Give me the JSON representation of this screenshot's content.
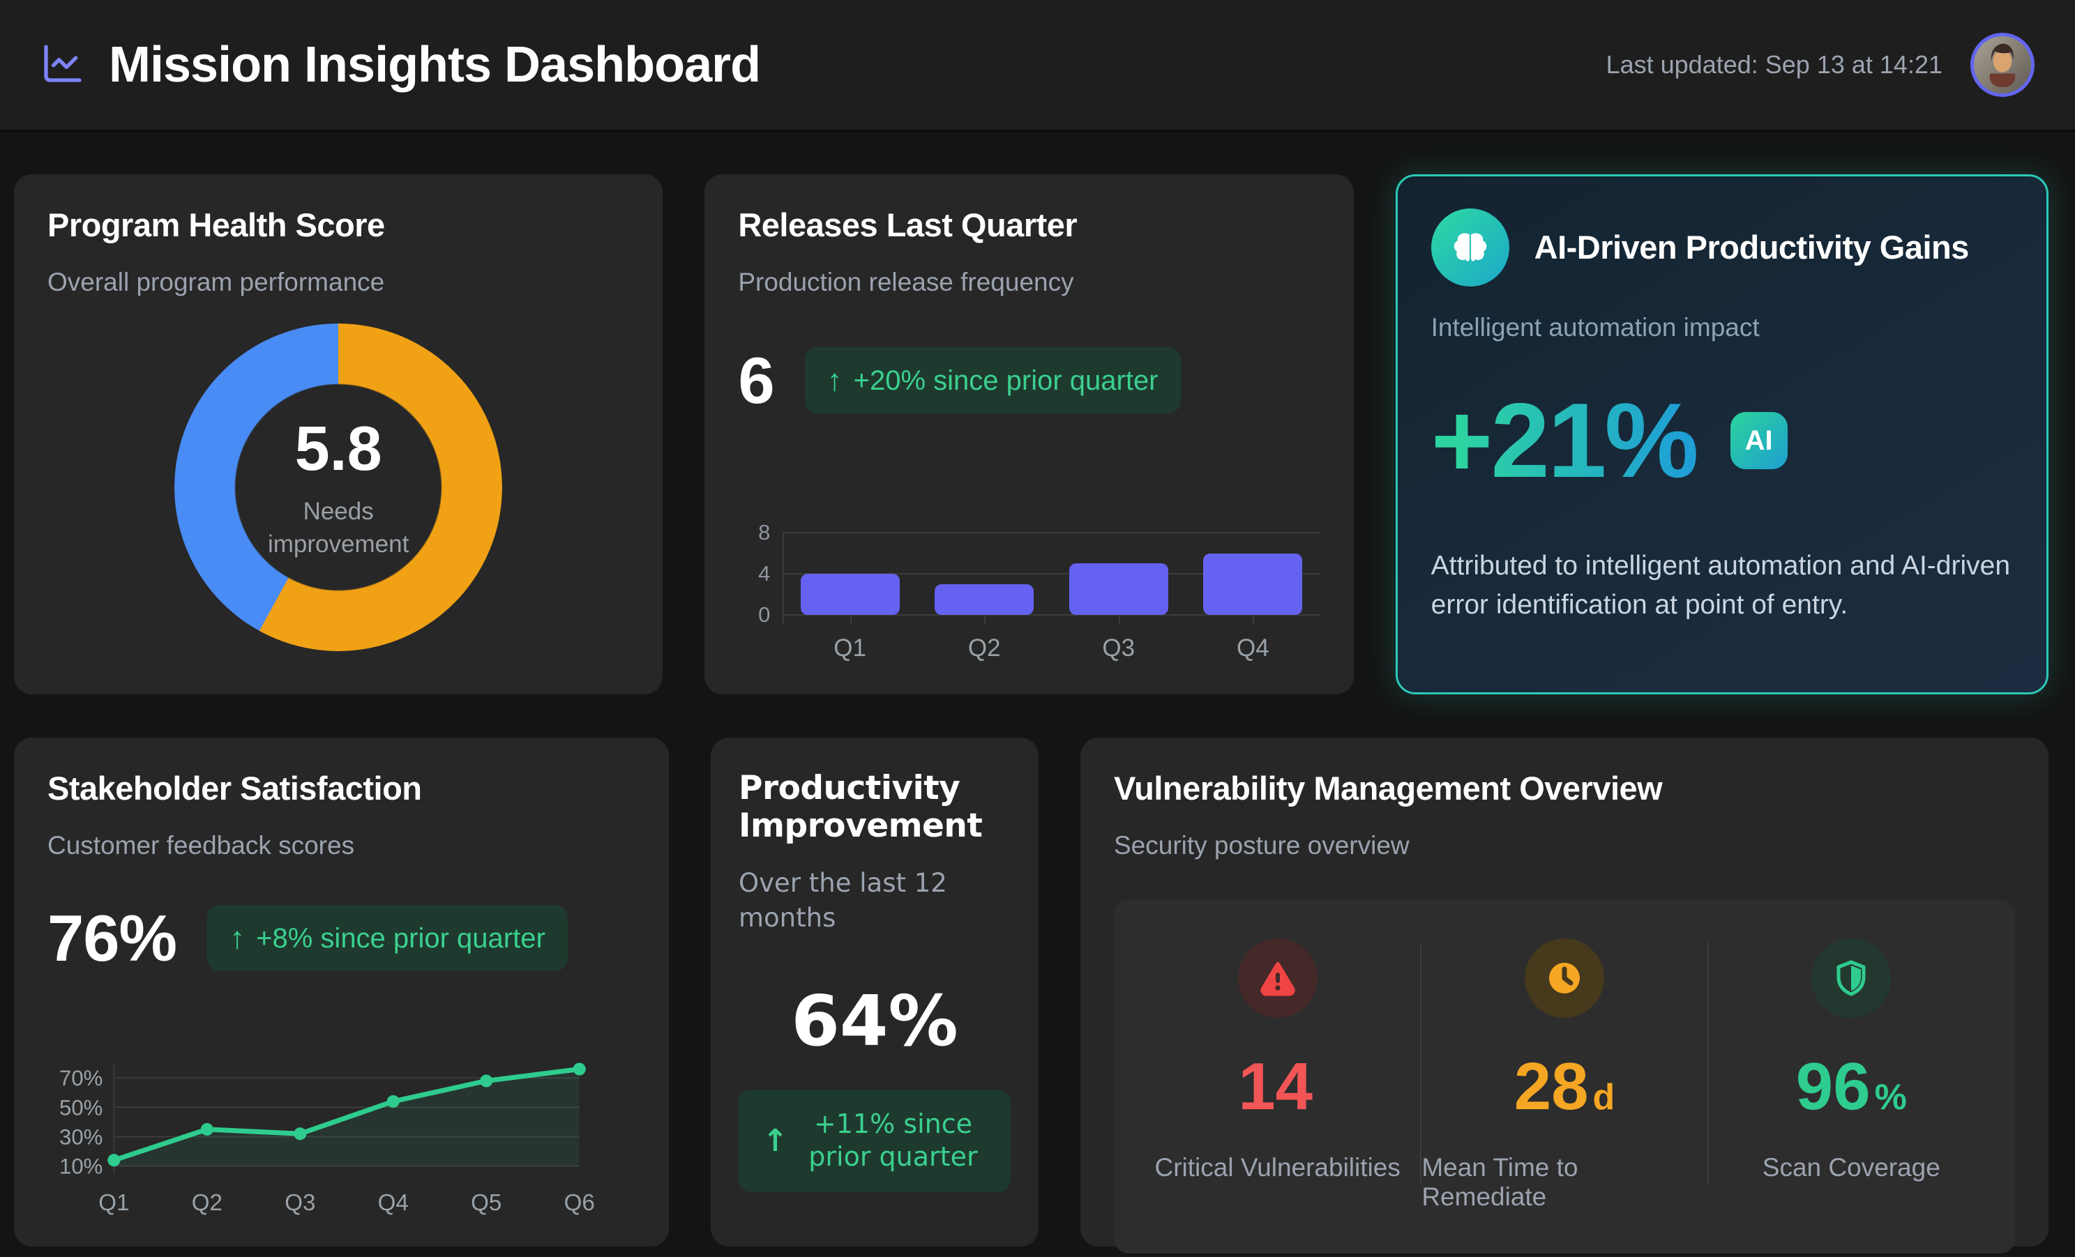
{
  "header": {
    "title": "Mission Insights Dashboard",
    "last_updated": "Last updated: Sep 13 at 14:21"
  },
  "cards": {
    "program_health": {
      "title": "Program Health Score",
      "subtitle": "Overall program performance",
      "score": "5.8",
      "score_value": 5.8,
      "score_max": 10,
      "status_line1": "Needs",
      "status_line2": "improvement",
      "donut_primary_color": "#f0a114",
      "donut_secondary_color": "#4a8cf5"
    },
    "releases": {
      "title": "Releases Last Quarter",
      "subtitle": "Production release frequency",
      "value": "6",
      "badge_arrow": "↑",
      "badge": "+20% since prior quarter"
    },
    "ai_gains": {
      "title": "AI-Driven Productivity Gains",
      "subtitle": "Intelligent automation impact",
      "value": "+21%",
      "badge": "AI",
      "description": "Attributed to intelligent automation and AI-driven error identification at point of entry."
    },
    "stakeholder": {
      "title": "Stakeholder Satisfaction",
      "subtitle": "Customer feedback scores",
      "value": "76%",
      "badge_arrow": "↑",
      "badge": "+8% since prior quarter"
    },
    "productivity": {
      "title": "Productivity Improvement",
      "subtitle": "Over the last 12 months",
      "value": "64%",
      "badge_arrow": "↑",
      "badge": "+11% since prior quarter"
    },
    "vulnerability": {
      "title": "Vulnerability Management Overview",
      "subtitle": "Security posture overview",
      "stats": [
        {
          "value": "14",
          "unit": "",
          "label": "Critical Vulnerabilities",
          "color": "#f25555"
        },
        {
          "value": "28",
          "unit": "d",
          "label": "Mean Time to Remediate",
          "color": "#f5a623"
        },
        {
          "value": "96",
          "unit": "%",
          "label": "Scan Coverage",
          "color": "#2ecc8f"
        }
      ]
    }
  },
  "chart_data": [
    {
      "id": "releases_bar",
      "type": "bar",
      "title": "Releases Last Quarter",
      "categories": [
        "Q1",
        "Q2",
        "Q3",
        "Q4"
      ],
      "values": [
        4,
        3,
        5,
        6
      ],
      "ylim": [
        0,
        8
      ],
      "yticks": [
        0,
        4,
        8
      ],
      "grid": true,
      "bar_color": "#6562f2"
    },
    {
      "id": "satisfaction_line",
      "type": "line",
      "title": "Stakeholder Satisfaction",
      "categories": [
        "Q1",
        "Q2",
        "Q3",
        "Q4",
        "Q5",
        "Q6"
      ],
      "values": [
        14,
        35,
        32,
        54,
        68,
        76
      ],
      "ylim": [
        10,
        80
      ],
      "yticks": [
        10,
        30,
        50,
        70
      ],
      "ytick_suffix": "%",
      "grid": true,
      "line_color": "#2ecc8f",
      "area_fill": "rgba(46,204,143,0.09)"
    }
  ]
}
